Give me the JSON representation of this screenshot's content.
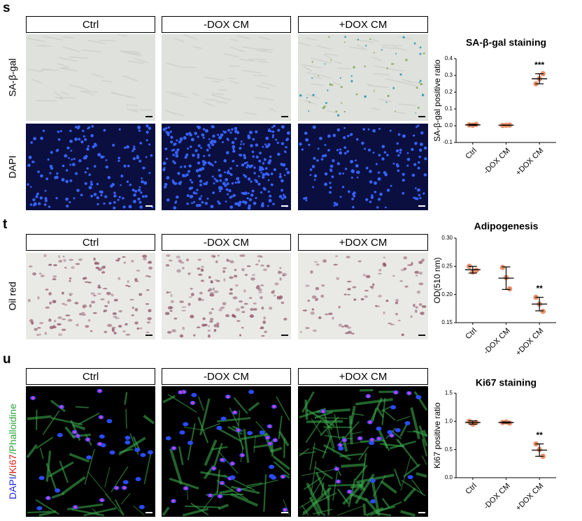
{
  "panels": [
    {
      "label": "s",
      "columns": [
        "Ctrl",
        "-DOX CM",
        "+DOX CM"
      ],
      "rows": [
        "SA-β-gal",
        "DAPI"
      ]
    },
    {
      "label": "t",
      "columns": [
        "Ctrl",
        "-DOX CM",
        "+DOX CM"
      ],
      "rows": [
        "Oil red"
      ]
    },
    {
      "label": "u",
      "columns": [
        "Ctrl",
        "-DOX CM",
        "+DOX CM"
      ],
      "rows": [
        [
          {
            "text": "DAPI",
            "color": "#1f2bd9"
          },
          {
            "text": "/",
            "color": "#333333"
          },
          {
            "text": "Ki67",
            "color": "#e0201b"
          },
          {
            "text": "/Phalloidine",
            "color": "#2aa63a"
          }
        ]
      ]
    }
  ],
  "chart_data": [
    {
      "type": "dot",
      "title": "SA-β-gal staining",
      "y_label": "SA-β-gal positive ratio",
      "categories": [
        "Ctrl",
        "-DOX CM",
        "+DOX CM"
      ],
      "points": [
        [
          0.005,
          0.003,
          0.008
        ],
        [
          0.002,
          0.003,
          0.004
        ],
        [
          0.25,
          0.28,
          0.31
        ]
      ],
      "means": [
        0.005,
        0.003,
        0.28
      ],
      "errors": [
        0.003,
        0.001,
        0.03
      ],
      "value_annotations": [
        null,
        null,
        "***"
      ],
      "color": "#e8916b",
      "ylim": [
        -0.1,
        0.4
      ],
      "yticks": [
        -0.1,
        {
          "value": 0,
          "label": "0.0"
        },
        0.1,
        0.2,
        0.3,
        0.4
      ]
    },
    {
      "type": "dot",
      "title": "Adipogenesis",
      "y_label": "OD(510 nm)",
      "categories": [
        "Ctrl",
        "-DOX CM",
        "+DOX CM"
      ],
      "points": [
        [
          0.25,
          0.24,
          0.243
        ],
        [
          0.248,
          0.23,
          0.21
        ],
        [
          0.195,
          0.183,
          0.17
        ]
      ],
      "means": [
        0.244,
        0.229,
        0.183
      ],
      "errors": [
        0.006,
        0.02,
        0.012
      ],
      "value_annotations": [
        null,
        null,
        "**"
      ],
      "color": "#e8916b",
      "ylim": [
        0.15,
        0.3
      ],
      "yticks": [
        0.15,
        {
          "value": 0.2,
          "label": "0.20"
        },
        0.25,
        {
          "value": 0.3,
          "label": "0.30"
        }
      ]
    },
    {
      "type": "dot",
      "title": "Ki67 staining",
      "y_label": "Ki67 positive ratio",
      "categories": [
        "Ctrl",
        "-DOX CM",
        "+DOX CM"
      ],
      "points": [
        [
          1.0,
          0.95,
          0.98
        ],
        [
          0.98,
          0.99,
          0.97
        ],
        [
          0.6,
          0.5,
          0.38
        ]
      ],
      "means": [
        0.98,
        0.98,
        0.49
      ],
      "errors": [
        0.03,
        0.01,
        0.11
      ],
      "value_annotations": [
        null,
        null,
        "**"
      ],
      "color": "#e8916b",
      "ylim": [
        0,
        1.5
      ],
      "yticks": [
        {
          "value": 0,
          "label": "0.0"
        },
        0.5,
        {
          "value": 1,
          "label": "1.0"
        },
        1.5
      ]
    }
  ]
}
